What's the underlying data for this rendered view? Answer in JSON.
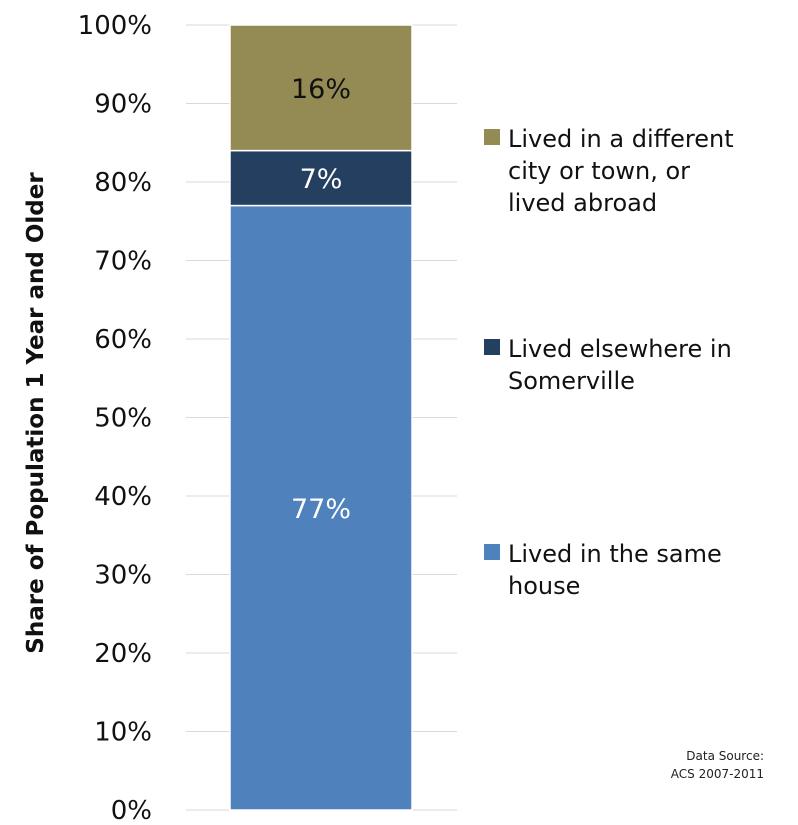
{
  "chart_data": {
    "type": "bar",
    "stacked": true,
    "ylabel": "Share of Population 1 Year and Older",
    "xlabel": "",
    "ylim": [
      0,
      100
    ],
    "ytick_labels": [
      "0%",
      "10%",
      "20%",
      "30%",
      "40%",
      "50%",
      "60%",
      "70%",
      "80%",
      "90%",
      "100%"
    ],
    "categories": [
      ""
    ],
    "series": [
      {
        "name": "Lived in the same house",
        "values": [
          77
        ],
        "label": "77%",
        "color": "#4f81bd",
        "label_color": "#ffffff"
      },
      {
        "name": "Lived elsewhere in Somerville",
        "values": [
          7
        ],
        "label": "7%",
        "color": "#243f60",
        "label_color": "#ffffff"
      },
      {
        "name": "Lived in a different city or town, or lived abroad",
        "values": [
          16
        ],
        "label": "16%",
        "color": "#948a54",
        "label_color": "#111111"
      }
    ],
    "legend": {
      "placement": "right",
      "entries": [
        {
          "lines": [
            "Lived in a different",
            "city or town, or",
            "lived abroad"
          ],
          "color": "#948a54"
        },
        {
          "lines": [
            "Lived elsewhere in",
            "Somerville"
          ],
          "color": "#243f60"
        },
        {
          "lines": [
            "Lived in the same",
            "house"
          ],
          "color": "#4f81bd"
        }
      ]
    },
    "grid": true,
    "source": [
      "Data Source:",
      "ACS 2007-2011"
    ]
  }
}
